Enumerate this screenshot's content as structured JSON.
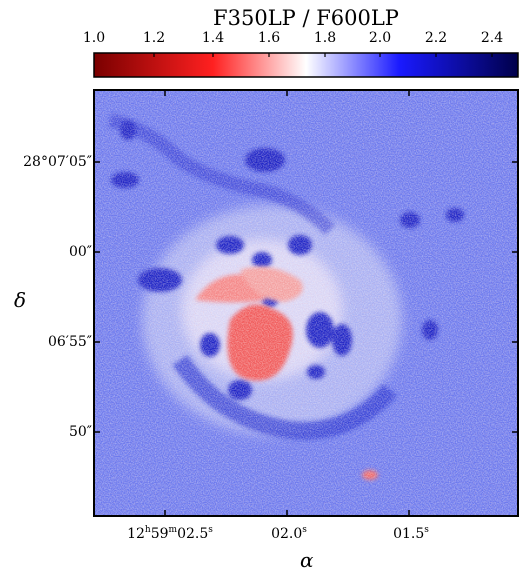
{
  "colorbar": {
    "title": "F350LP / F600LP",
    "tick_labels": [
      "1.0",
      "1.2",
      "1.4",
      "1.6",
      "1.8",
      "2.0",
      "2.2",
      "2.4"
    ],
    "colors": {
      "low": "#7a0000",
      "mid_low": "#ff2020",
      "mid": "#ffffff",
      "mid_high": "#1a1aff",
      "high": "#00004a"
    }
  },
  "axes": {
    "ylabel": "δ",
    "xlabel": "α",
    "y_ticks": [
      {
        "label": "28°07′05″"
      },
      {
        "label": "00″"
      },
      {
        "label": "06′55″"
      },
      {
        "label": "50″"
      }
    ],
    "x_ticks": [
      {
        "base": "12",
        "h": "h",
        "m_val": "59",
        "m": "m",
        "s_val": "02.5",
        "s": "s"
      },
      {
        "base": "02.0",
        "s": "s"
      },
      {
        "base": "01.5",
        "s": "s"
      }
    ]
  }
}
